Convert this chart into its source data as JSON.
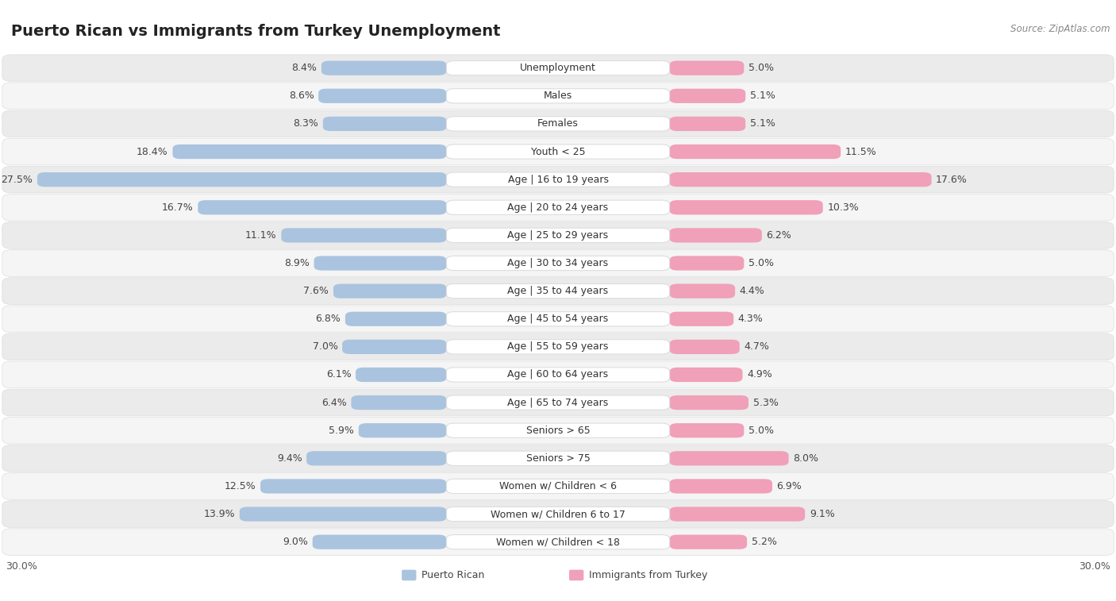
{
  "title": "Puerto Rican vs Immigrants from Turkey Unemployment",
  "source": "Source: ZipAtlas.com",
  "categories": [
    "Unemployment",
    "Males",
    "Females",
    "Youth < 25",
    "Age | 16 to 19 years",
    "Age | 20 to 24 years",
    "Age | 25 to 29 years",
    "Age | 30 to 34 years",
    "Age | 35 to 44 years",
    "Age | 45 to 54 years",
    "Age | 55 to 59 years",
    "Age | 60 to 64 years",
    "Age | 65 to 74 years",
    "Seniors > 65",
    "Seniors > 75",
    "Women w/ Children < 6",
    "Women w/ Children 6 to 17",
    "Women w/ Children < 18"
  ],
  "left_values": [
    8.4,
    8.6,
    8.3,
    18.4,
    27.5,
    16.7,
    11.1,
    8.9,
    7.6,
    6.8,
    7.0,
    6.1,
    6.4,
    5.9,
    9.4,
    12.5,
    13.9,
    9.0
  ],
  "right_values": [
    5.0,
    5.1,
    5.1,
    11.5,
    17.6,
    10.3,
    6.2,
    5.0,
    4.4,
    4.3,
    4.7,
    4.9,
    5.3,
    5.0,
    8.0,
    6.9,
    9.1,
    5.2
  ],
  "left_color": "#aac4df",
  "right_color": "#f0a0b8",
  "row_bg_even": "#ebebeb",
  "row_bg_odd": "#f5f5f5",
  "max_value": 30.0,
  "left_label": "Puerto Rican",
  "right_label": "Immigrants from Turkey",
  "title_fontsize": 14,
  "label_fontsize": 9,
  "value_fontsize": 9,
  "axis_label_fontsize": 9,
  "background_color": "#ffffff"
}
